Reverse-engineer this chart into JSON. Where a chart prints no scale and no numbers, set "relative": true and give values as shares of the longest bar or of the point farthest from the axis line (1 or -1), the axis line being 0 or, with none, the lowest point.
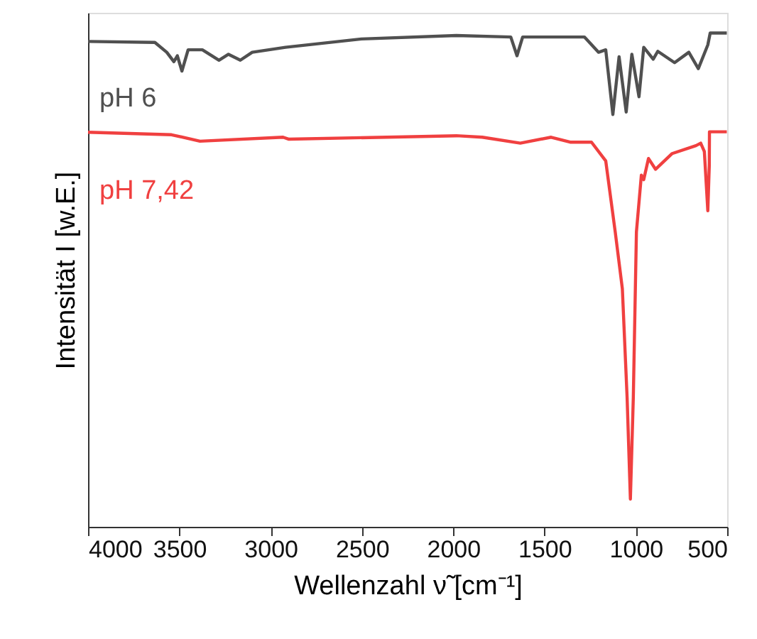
{
  "chart_data": {
    "type": "line",
    "relative": true,
    "xlabel": "Wellenzahl  ν̃ [cm⁻¹]",
    "ylabel": "Intensität I [w.E.]",
    "xlim": [
      4000,
      500
    ],
    "xticks": [
      4000,
      3500,
      3000,
      2500,
      2000,
      1500,
      1000,
      500
    ],
    "grid": false,
    "marker": "none",
    "line_style": "solid",
    "series": [
      {
        "name": "pH 6",
        "color": "#505050",
        "x": [
          4000,
          3634,
          3569,
          3530,
          3511,
          3486,
          3452,
          3374,
          3283,
          3231,
          3166,
          3101,
          2919,
          2503,
          1983,
          1685,
          1651,
          1620,
          1282,
          1204,
          1165,
          1126,
          1092,
          1053,
          1022,
          983,
          957,
          905,
          880,
          788,
          710,
          658,
          606,
          593,
          502
        ],
        "values": [
          0.983,
          0.981,
          0.961,
          0.942,
          0.954,
          0.923,
          0.966,
          0.966,
          0.945,
          0.957,
          0.945,
          0.961,
          0.971,
          0.988,
          0.995,
          0.992,
          0.954,
          0.992,
          0.992,
          0.961,
          0.966,
          0.835,
          0.952,
          0.84,
          0.957,
          0.871,
          0.971,
          0.947,
          0.963,
          0.94,
          0.961,
          0.928,
          0.976,
          1.0,
          1.0
        ]
      },
      {
        "name": "pH 7,42",
        "color": "#f04040",
        "x": [
          4000,
          3543,
          3387,
          2932,
          2900,
          1983,
          1841,
          1633,
          1464,
          1360,
          1243,
          1165,
          1113,
          1074,
          1048,
          1030,
          1014,
          997,
          970,
          957,
          931,
          892,
          801,
          671,
          645,
          625,
          606,
          598,
          597,
          502
        ],
        "values": [
          0.799,
          0.794,
          0.781,
          0.789,
          0.785,
          0.792,
          0.789,
          0.777,
          0.789,
          0.779,
          0.779,
          0.741,
          0.597,
          0.482,
          0.262,
          0.056,
          0.262,
          0.597,
          0.712,
          0.703,
          0.746,
          0.724,
          0.756,
          0.772,
          0.777,
          0.76,
          0.64,
          0.731,
          0.8,
          0.8
        ]
      }
    ]
  }
}
